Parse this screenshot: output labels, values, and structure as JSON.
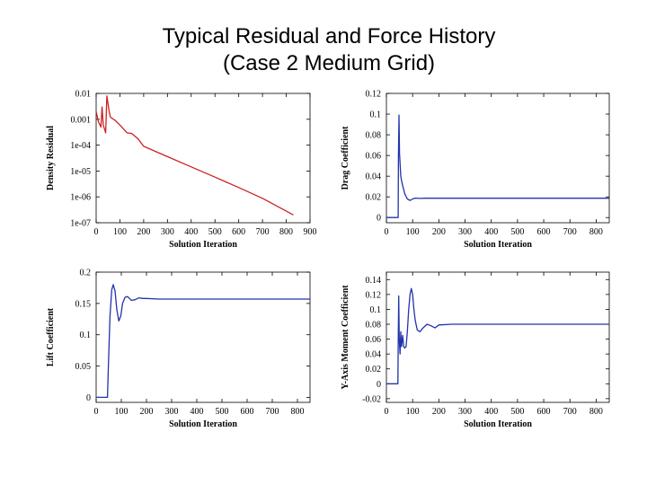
{
  "title": {
    "line1": "Typical Residual and Force History",
    "line2": "(Case 2 Medium Grid)"
  },
  "colors": {
    "residual": "#cc2222",
    "force": "#2233aa",
    "axis": "#000000"
  },
  "chart_data": [
    {
      "id": "density-residual",
      "type": "line",
      "yscale": "log",
      "xlabel": "Solution Iteration",
      "ylabel": "Density Residual",
      "xlim": [
        0,
        900
      ],
      "ylim": [
        1e-07,
        0.01
      ],
      "xticks": [
        0,
        100,
        200,
        300,
        400,
        500,
        600,
        700,
        800,
        900
      ],
      "yticks": [
        {
          "value": 0.01,
          "label": "0.01"
        },
        {
          "value": 0.001,
          "label": "0.001"
        },
        {
          "value": 0.0001,
          "label": "1e-04"
        },
        {
          "value": 1e-05,
          "label": "1e-05"
        },
        {
          "value": 1e-06,
          "label": "1e-06"
        },
        {
          "value": 1e-07,
          "label": "1e-07"
        }
      ],
      "series": [
        {
          "name": "residual",
          "color": "#cc2222",
          "x": [
            0,
            10,
            20,
            25,
            30,
            40,
            45,
            50,
            55,
            60,
            80,
            100,
            130,
            150,
            175,
            200,
            300,
            400,
            500,
            600,
            700,
            800,
            830
          ],
          "y": [
            0.002,
            0.0008,
            0.0005,
            0.003,
            0.0006,
            0.0003,
            0.008,
            0.004,
            0.002,
            0.0012,
            0.0009,
            0.0006,
            0.0003,
            0.00028,
            0.00018,
            9e-05,
            3.6e-05,
            1.45e-05,
            5.8e-06,
            2.3e-06,
            8.8e-07,
            2.8e-07,
            2e-07
          ]
        }
      ]
    },
    {
      "id": "drag-coefficient",
      "type": "line",
      "xlabel": "Solution Iteration",
      "ylabel": "Drag Coefficient",
      "xlim": [
        0,
        850
      ],
      "ylim": [
        -0.005,
        0.12
      ],
      "xticks": [
        0,
        100,
        200,
        300,
        400,
        500,
        600,
        700,
        800
      ],
      "yticks": [
        {
          "value": 0.12,
          "label": "0.12"
        },
        {
          "value": 0.1,
          "label": "0.1"
        },
        {
          "value": 0.08,
          "label": "0.08"
        },
        {
          "value": 0.06,
          "label": "0.06"
        },
        {
          "value": 0.04,
          "label": "0.04"
        },
        {
          "value": 0.02,
          "label": "0.02"
        },
        {
          "value": 0,
          "label": "0"
        }
      ],
      "series": [
        {
          "name": "CD",
          "color": "#2233aa",
          "x": [
            0,
            45,
            46,
            48,
            50,
            55,
            60,
            70,
            80,
            90,
            100,
            110,
            130,
            150,
            200,
            300,
            850
          ],
          "y": [
            0,
            0,
            0.06,
            0.099,
            0.062,
            0.04,
            0.033,
            0.023,
            0.018,
            0.0165,
            0.018,
            0.0188,
            0.0185,
            0.0187,
            0.0187,
            0.0187,
            0.0187
          ]
        }
      ]
    },
    {
      "id": "lift-coefficient",
      "type": "line",
      "xlabel": "Solution Iteration",
      "ylabel": "Lift Coefficient",
      "xlim": [
        0,
        850
      ],
      "ylim": [
        -0.008,
        0.2
      ],
      "xticks": [
        0,
        100,
        200,
        300,
        400,
        500,
        600,
        700,
        800
      ],
      "yticks": [
        {
          "value": 0.2,
          "label": "0.2"
        },
        {
          "value": 0.15,
          "label": "0.15"
        },
        {
          "value": 0.1,
          "label": "0.1"
        },
        {
          "value": 0.05,
          "label": "0.05"
        },
        {
          "value": 0,
          "label": "0"
        }
      ],
      "series": [
        {
          "name": "CL",
          "color": "#2233aa",
          "x": [
            0,
            45,
            48,
            55,
            62,
            68,
            75,
            82,
            90,
            98,
            105,
            115,
            125,
            140,
            155,
            170,
            185,
            200,
            250,
            850
          ],
          "y": [
            0,
            0,
            0.04,
            0.13,
            0.172,
            0.18,
            0.17,
            0.14,
            0.122,
            0.13,
            0.15,
            0.16,
            0.161,
            0.155,
            0.156,
            0.159,
            0.158,
            0.158,
            0.157,
            0.157
          ]
        }
      ]
    },
    {
      "id": "y-axis-moment-coefficient",
      "type": "line",
      "xlabel": "Solution Iteration",
      "ylabel": "Y-Axis Moment Coefficient",
      "xlim": [
        0,
        850
      ],
      "ylim": [
        -0.025,
        0.15
      ],
      "xticks": [
        0,
        100,
        200,
        300,
        400,
        500,
        600,
        700,
        800
      ],
      "yticks": [
        {
          "value": 0.14,
          "label": "0.14"
        },
        {
          "value": 0.12,
          "label": "0.12"
        },
        {
          "value": 0.1,
          "label": "0.1"
        },
        {
          "value": 0.08,
          "label": "0.08"
        },
        {
          "value": 0.06,
          "label": "0.06"
        },
        {
          "value": 0.04,
          "label": "0.04"
        },
        {
          "value": 0.02,
          "label": "0.02"
        },
        {
          "value": 0,
          "label": "0"
        },
        {
          "value": -0.02,
          "label": "-0.02"
        }
      ],
      "series": [
        {
          "name": "CMy",
          "color": "#2233aa",
          "x": [
            0,
            44,
            45,
            47,
            49,
            52,
            55,
            58,
            62,
            66,
            70,
            75,
            80,
            85,
            90,
            95,
            100,
            105,
            110,
            118,
            128,
            140,
            155,
            170,
            185,
            200,
            250,
            850
          ],
          "y": [
            0,
            0,
            0.05,
            0.118,
            0.06,
            0.04,
            0.07,
            0.05,
            0.065,
            0.05,
            0.048,
            0.05,
            0.07,
            0.1,
            0.12,
            0.128,
            0.12,
            0.1,
            0.085,
            0.072,
            0.07,
            0.075,
            0.08,
            0.078,
            0.075,
            0.079,
            0.08,
            0.08
          ]
        }
      ]
    }
  ]
}
